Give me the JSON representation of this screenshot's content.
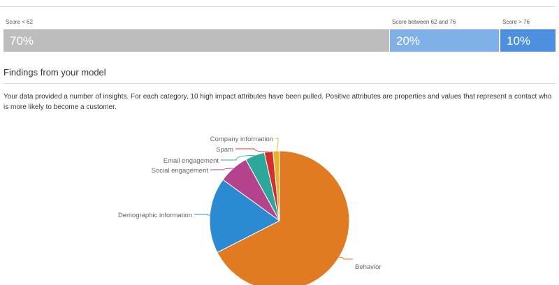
{
  "segments": [
    {
      "label": "Score < 62",
      "value": "70%",
      "color": "#bdbdbd"
    },
    {
      "label": "Score between 62 and 76",
      "value": "20%",
      "color": "#7fb1e8"
    },
    {
      "label": "Score > 76",
      "value": "10%",
      "color": "#4d90e0"
    }
  ],
  "findings": {
    "title": "Findings from your model",
    "intro": "Your data provided a number of insights. For each category, 10 high impact attributes have been pulled. Positive attributes are properties and values that represent a contact who is more likely to become a customer."
  },
  "chart_data": {
    "type": "pie",
    "slices": [
      {
        "label": "Behavior",
        "value": 67.5,
        "color": "#e07b22"
      },
      {
        "label": "Demographic information",
        "value": 17.5,
        "color": "#2b8ad1"
      },
      {
        "label": "Social engagement",
        "value": 7,
        "color": "#b5428c"
      },
      {
        "label": "Email engagement",
        "value": 4.5,
        "color": "#2ba89a"
      },
      {
        "label": "Spam",
        "value": 2,
        "color": "#d32f2f"
      },
      {
        "label": "Company information",
        "value": 1.5,
        "color": "#e8b32b"
      }
    ]
  }
}
